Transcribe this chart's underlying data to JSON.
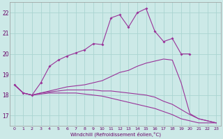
{
  "xlabel": "Windchill (Refroidissement éolien,°C)",
  "x_ticks": [
    0,
    1,
    2,
    3,
    4,
    5,
    6,
    7,
    8,
    9,
    10,
    11,
    12,
    13,
    14,
    15,
    16,
    17,
    18,
    19,
    20,
    21,
    22,
    23
  ],
  "ylim": [
    16.5,
    22.5
  ],
  "xlim": [
    -0.5,
    23.5
  ],
  "y_ticks": [
    17,
    18,
    19,
    20,
    21,
    22
  ],
  "background_color": "#cce9e7",
  "grid_color": "#aad4d1",
  "line_color": "#993399",
  "line_color2": "#993399",
  "line1_x": [
    0,
    1,
    2,
    3,
    4,
    5,
    6,
    7,
    8,
    9,
    10,
    11,
    12,
    13,
    14,
    15,
    16,
    17,
    18,
    19,
    20
  ],
  "line1_y": [
    18.5,
    18.1,
    18.0,
    18.6,
    19.4,
    19.7,
    19.9,
    20.05,
    20.2,
    20.5,
    20.45,
    21.75,
    21.9,
    21.3,
    22.0,
    22.2,
    21.1,
    20.6,
    20.75,
    20.0,
    20.0
  ],
  "line2_x": [
    0,
    1,
    2,
    3,
    4,
    5,
    6,
    7,
    8,
    9,
    10,
    11,
    12,
    13,
    14,
    15,
    16,
    17,
    18,
    19,
    20,
    21,
    22,
    23
  ],
  "line2_y": [
    18.5,
    18.1,
    18.0,
    18.1,
    18.2,
    18.3,
    18.4,
    18.45,
    18.5,
    18.6,
    18.7,
    18.9,
    19.1,
    19.2,
    19.4,
    19.55,
    19.65,
    19.75,
    19.7,
    18.6,
    17.1,
    16.85,
    16.75,
    16.65
  ],
  "line3_x": [
    0,
    1,
    2,
    3,
    4,
    5,
    6,
    7,
    8,
    9,
    10,
    11,
    12,
    13,
    14,
    15,
    16,
    17,
    18,
    19,
    20,
    21,
    22,
    23
  ],
  "line3_y": [
    18.5,
    18.1,
    18.0,
    18.1,
    18.15,
    18.2,
    18.25,
    18.25,
    18.25,
    18.25,
    18.2,
    18.2,
    18.15,
    18.1,
    18.05,
    18.0,
    17.9,
    17.7,
    17.55,
    17.3,
    17.05,
    16.85,
    16.75,
    16.65
  ],
  "line4_x": [
    0,
    1,
    2,
    3,
    4,
    5,
    6,
    7,
    8,
    9,
    10,
    11,
    12,
    13,
    14,
    15,
    16,
    17,
    18,
    19,
    20,
    21,
    22,
    23
  ],
  "line4_y": [
    18.5,
    18.1,
    18.0,
    18.05,
    18.1,
    18.1,
    18.1,
    18.1,
    18.05,
    18.0,
    17.95,
    17.85,
    17.75,
    17.65,
    17.55,
    17.45,
    17.35,
    17.2,
    17.05,
    16.85,
    16.75,
    16.65,
    16.65,
    16.65
  ]
}
